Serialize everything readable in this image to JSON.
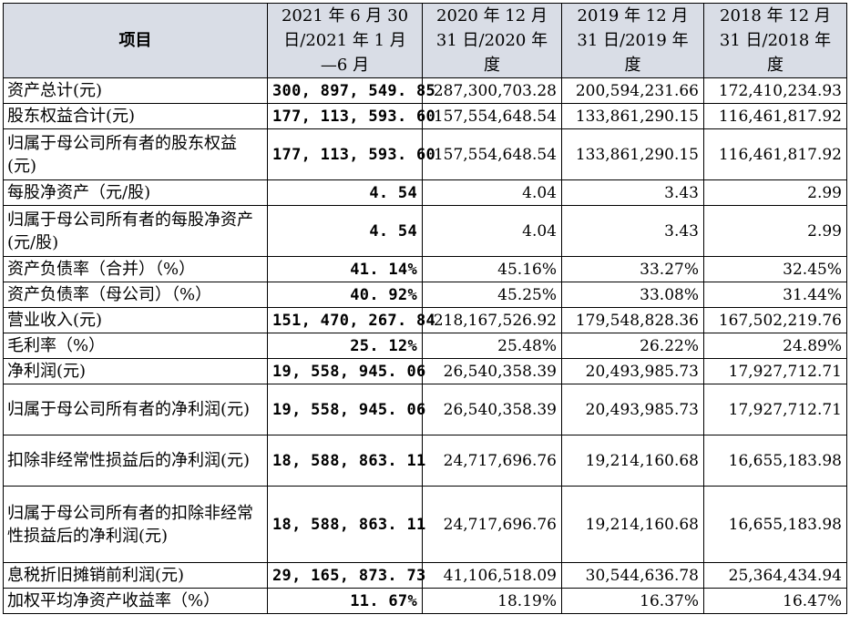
{
  "header": {
    "item": "项目",
    "col1_lines": [
      "2021 年 6 月 30",
      "日/2021 年 1 月",
      "—6 月"
    ],
    "col2_lines": [
      "2020 年 12 月",
      "31 日/2020 年",
      "度"
    ],
    "col3_lines": [
      "2019 年 12 月",
      "31 日/2019 年",
      "度"
    ],
    "col4_lines": [
      "2018 年 12 月",
      "31 日/2018 年",
      "度"
    ]
  },
  "rows": [
    {
      "label": "资产总计(元)",
      "v2021": "300, 897, 549. 85",
      "v2020": "287,300,703.28",
      "v2019": "200,594,231.66",
      "v2018": "172,410,234.93"
    },
    {
      "label": "股东权益合计(元)",
      "v2021": "177, 113, 593. 60",
      "v2020": "157,554,648.54",
      "v2019": "133,861,290.15",
      "v2018": "116,461,817.92"
    },
    {
      "label": "归属于母公司所有者的股东权益(元)",
      "v2021": "177, 113, 593. 60",
      "v2020": "157,554,648.54",
      "v2019": "133,861,290.15",
      "v2018": "116,461,817.92"
    },
    {
      "label": "每股净资产（元/股)",
      "v2021": "4. 54",
      "v2020": "4.04",
      "v2019": "3.43",
      "v2018": "2.99"
    },
    {
      "label": "归属于母公司所有者的每股净资产(元/股)",
      "v2021": "4. 54",
      "v2020": "4.04",
      "v2019": "3.43",
      "v2018": "2.99"
    },
    {
      "label": "资产负债率（合并）（%）",
      "v2021": "41. 14%",
      "v2020": "45.16%",
      "v2019": "33.27%",
      "v2018": "32.45%"
    },
    {
      "label": "资产负债率（母公司）（%）",
      "v2021": "40. 92%",
      "v2020": "45.25%",
      "v2019": "33.08%",
      "v2018": "31.44%"
    },
    {
      "label": "营业收入(元)",
      "v2021": "151, 470, 267. 84",
      "v2020": "218,167,526.92",
      "v2019": "179,548,828.36",
      "v2018": "167,502,219.76"
    },
    {
      "label": "毛利率（%）",
      "v2021": "25. 12%",
      "v2020": "25.48%",
      "v2019": "26.22%",
      "v2018": "24.89%"
    },
    {
      "label": "净利润(元)",
      "v2021": "19, 558, 945. 06",
      "v2020": "26,540,358.39",
      "v2019": "20,493,985.73",
      "v2018": "17,927,712.71"
    },
    {
      "label": "归属于母公司所有者的净利润(元)",
      "v2021": "19, 558, 945. 06",
      "v2020": "26,540,358.39",
      "v2019": "20,493,985.73",
      "v2018": "17,927,712.71"
    },
    {
      "label": "扣除非经常性损益后的净利润(元)",
      "v2021": "18, 588, 863. 11",
      "v2020": "24,717,696.76",
      "v2019": "19,214,160.68",
      "v2018": "16,655,183.98"
    },
    {
      "label": "归属于母公司所有者的扣除非经常性损益后的净利润(元)",
      "v2021": "18, 588, 863. 11",
      "v2020": "24,717,696.76",
      "v2019": "19,214,160.68",
      "v2018": "16,655,183.98"
    },
    {
      "label": "息税折旧摊销前利润(元)",
      "v2021": "29, 165, 873. 73",
      "v2020": "41,106,518.09",
      "v2019": "30,544,636.78",
      "v2018": "25,364,434.94"
    },
    {
      "label": "加权平均净资产收益率（%）",
      "v2021": "11. 67%",
      "v2020": "18.19%",
      "v2019": "16.37%",
      "v2018": "16.47%"
    }
  ]
}
